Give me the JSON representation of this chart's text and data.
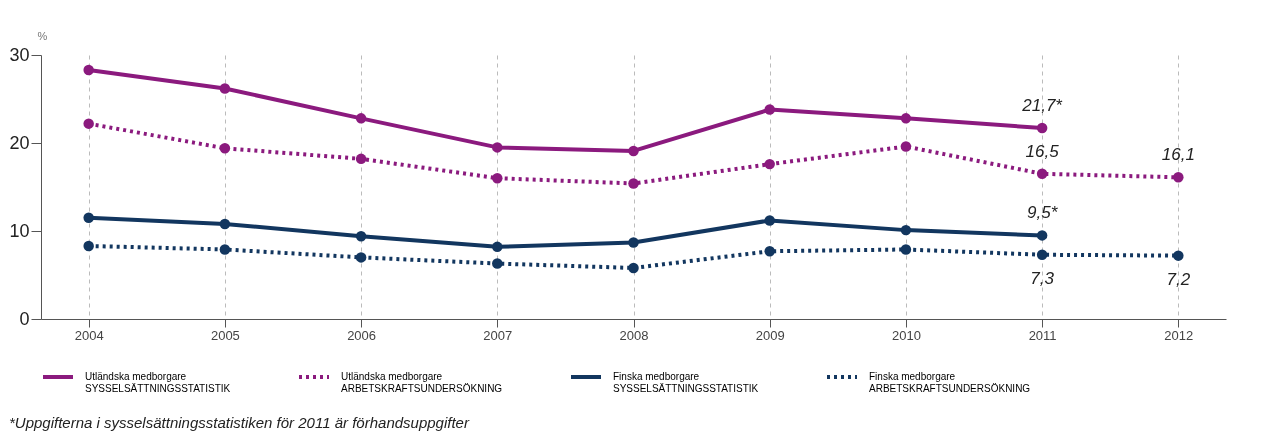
{
  "chart_data": {
    "type": "line",
    "ylabel": "%",
    "categories": [
      "2004",
      "2005",
      "2006",
      "2007",
      "2008",
      "2009",
      "2010",
      "2011",
      "2012"
    ],
    "ylim": [
      0,
      30
    ],
    "yticks": [
      0,
      10,
      20,
      30
    ],
    "grid": "x",
    "legend": "bottom",
    "marker": "circle",
    "series": [
      {
        "name": "Utländska medborgare\nSYSSELSÄTTNINGSSTATISTIK",
        "color": "#8b1a7e",
        "line_style": "solid",
        "values": [
          28.3,
          26.2,
          22.8,
          19.5,
          19.1,
          23.8,
          22.8,
          21.7,
          null
        ],
        "value_labels": [
          null,
          null,
          null,
          null,
          null,
          null,
          null,
          "21,7*",
          null
        ]
      },
      {
        "name": "Utländska medborgare\nARBETSKRAFTSUNDERSÖKNING",
        "color": "#8b1a7e",
        "line_style": "dotted",
        "values": [
          22.2,
          19.4,
          18.2,
          16.0,
          15.4,
          17.6,
          19.6,
          16.5,
          16.1
        ],
        "value_labels": [
          null,
          null,
          null,
          null,
          null,
          null,
          null,
          "16,5",
          "16,1"
        ]
      },
      {
        "name": "Finska medborgare\nSYSSELSÄTTNINGSSTATISTIK",
        "color": "#12365f",
        "line_style": "solid",
        "values": [
          11.5,
          10.8,
          9.4,
          8.2,
          8.7,
          11.2,
          10.1,
          9.5,
          null
        ],
        "value_labels": [
          null,
          null,
          null,
          null,
          null,
          null,
          null,
          "9,5*",
          null
        ]
      },
      {
        "name": "Finska medborgare\nARBETSKRAFTSUNDERSÖKNING",
        "color": "#12365f",
        "line_style": "dotted",
        "values": [
          8.3,
          7.9,
          7.0,
          6.3,
          5.8,
          7.7,
          7.9,
          7.3,
          7.2
        ],
        "value_labels": [
          null,
          null,
          null,
          null,
          null,
          null,
          null,
          "7,3",
          "7,2"
        ]
      }
    ],
    "annotations": [
      "*Uppgifterna i sysselsättningsstatistiken för 2011 är förhandsuppgifter"
    ]
  }
}
